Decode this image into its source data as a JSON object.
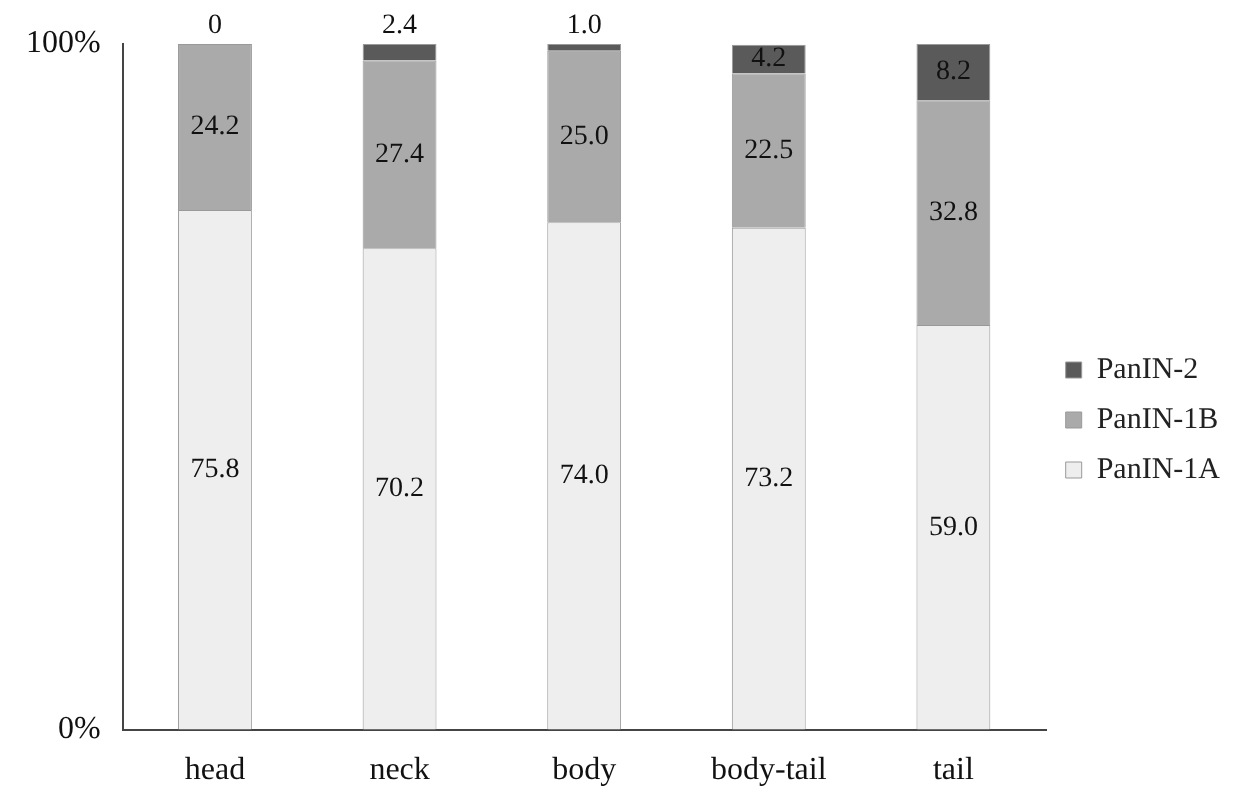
{
  "chart_data": {
    "type": "bar",
    "stacked": true,
    "categories": [
      "head",
      "neck",
      "body",
      "body-tail",
      "tail"
    ],
    "series": [
      {
        "name": "PanIN-1A",
        "color": "#eeeeee",
        "values": [
          75.8,
          70.2,
          74.0,
          73.2,
          59.0
        ],
        "value_labels": [
          "75.8",
          "70.2",
          "74.0",
          "73.2",
          "59.0"
        ]
      },
      {
        "name": "PanIN-1B",
        "color": "#aaaaaa",
        "values": [
          24.2,
          27.4,
          25.0,
          22.5,
          32.8
        ],
        "value_labels": [
          "24.2",
          "27.4",
          "25.0",
          "22.5",
          "32.8"
        ]
      },
      {
        "name": "PanIN-2",
        "color": "#5a5a5a",
        "values": [
          0,
          2.4,
          1.0,
          4.2,
          8.2
        ],
        "value_labels": [
          "0",
          "2.4",
          "1.0",
          "4.2",
          "8.2"
        ]
      }
    ],
    "ylim": [
      0,
      100
    ],
    "yticks": [
      {
        "value": 0,
        "label": "0%"
      },
      {
        "value": 100,
        "label": "100%"
      }
    ],
    "grid": false,
    "legend": "right"
  }
}
